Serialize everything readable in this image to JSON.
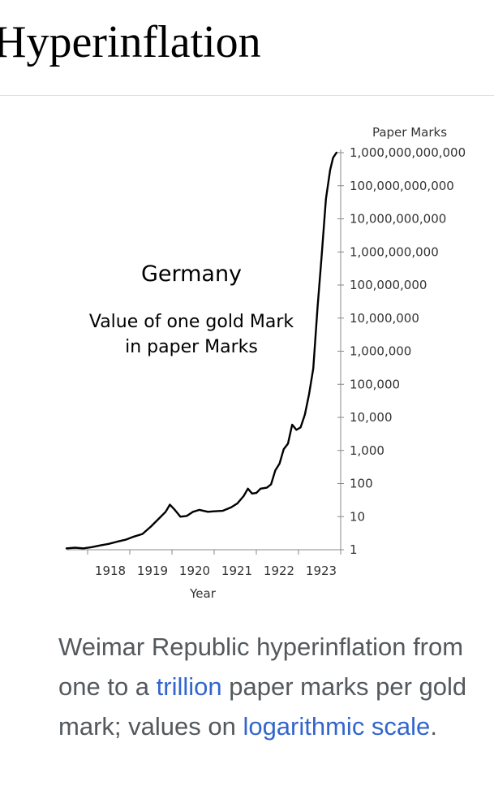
{
  "page": {
    "title": "Hyperinflation"
  },
  "caption": {
    "text_before": "Weimar Republic hyperinflation from one to a ",
    "link_trillion": "trillion",
    "text_middle": " paper marks per gold mark; values on ",
    "link_log_scale": "logarithmic scale",
    "text_after": "."
  },
  "chart_data": {
    "type": "line",
    "title": "Germany",
    "subtitle_lines": [
      "Value of one gold Mark",
      "in paper Marks"
    ],
    "xlabel": "Year",
    "ylabel": "Paper Marks",
    "y_scale": "log",
    "ylim": [
      1,
      1000000000000
    ],
    "xlim": [
      1917.5,
      1924.0
    ],
    "x_ticks": [
      1918,
      1919,
      1920,
      1921,
      1922,
      1923
    ],
    "y_ticks": [
      {
        "value": 1,
        "label": "1"
      },
      {
        "value": 10,
        "label": "10"
      },
      {
        "value": 100,
        "label": "100"
      },
      {
        "value": 1000,
        "label": "1,000"
      },
      {
        "value": 10000,
        "label": "10,000"
      },
      {
        "value": 100000,
        "label": "100,000"
      },
      {
        "value": 1000000,
        "label": "1,000,000"
      },
      {
        "value": 10000000,
        "label": "10,000,000"
      },
      {
        "value": 100000000,
        "label": "100,000,000"
      },
      {
        "value": 1000000000,
        "label": "1,000,000,000"
      },
      {
        "value": 10000000000,
        "label": "10,000,000,000"
      },
      {
        "value": 100000000000,
        "label": "100,000,000,000"
      },
      {
        "value": 1000000000000,
        "label": "1,000,000,000,000"
      }
    ],
    "grid": false,
    "legend": "none",
    "line_color": "#000000",
    "series": [
      {
        "x": [
          1917.5,
          1917.7,
          1917.9,
          1918.1,
          1918.3,
          1918.5,
          1918.7,
          1918.9,
          1919.1,
          1919.3,
          1919.5,
          1919.7,
          1919.85,
          1919.95,
          1920.05,
          1920.2,
          1920.35,
          1920.5,
          1920.65,
          1920.85,
          1921.0,
          1921.2,
          1921.4,
          1921.55,
          1921.7,
          1921.8,
          1921.9,
          1922.0,
          1922.1,
          1922.25,
          1922.35,
          1922.45,
          1922.55,
          1922.65,
          1922.75,
          1922.85,
          1922.95,
          1923.05,
          1923.15,
          1923.25,
          1923.35,
          1923.45,
          1923.55,
          1923.65,
          1923.75,
          1923.82,
          1923.9
        ],
        "y": [
          1.1,
          1.15,
          1.1,
          1.2,
          1.35,
          1.5,
          1.75,
          2.0,
          2.5,
          3.0,
          5.0,
          9.0,
          14.0,
          23.0,
          17.0,
          10.0,
          10.5,
          14.0,
          16.0,
          14.0,
          14.5,
          15.0,
          19.0,
          25.0,
          42.0,
          70.0,
          50.0,
          52.0,
          70.0,
          75.0,
          95.0,
          250.0,
          400.0,
          1100.0,
          1600.0,
          6000.0,
          4200.0,
          5000.0,
          12000.0,
          50000.0,
          300000.0,
          20000000.0,
          800000000.0,
          40000000000.0,
          300000000000.0,
          700000000000.0,
          1000000000000.0
        ]
      }
    ]
  }
}
